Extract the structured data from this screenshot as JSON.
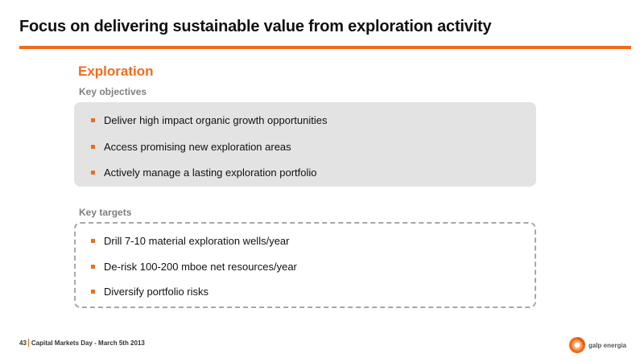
{
  "slide": {
    "title": "Focus on delivering sustainable value from exploration activity",
    "section_heading": "Exploration",
    "key_objectives": {
      "label": "Key objectives",
      "items": [
        "Deliver high impact organic growth opportunities",
        "Access promising new exploration areas",
        "Actively manage a lasting exploration portfolio"
      ]
    },
    "key_targets": {
      "label": "Key targets",
      "items": [
        "Drill 7-10 material exploration wells/year",
        "De-risk 100-200 mboe net resources/year",
        "Diversify portfolio risks"
      ]
    }
  },
  "footer": {
    "page_number": "43",
    "text": "Capital Markets Day - March 5th 2013",
    "logo_text": "galp energia"
  },
  "colors": {
    "accent": "#f26b1d",
    "objectives_box": "#e3e3e3",
    "targets_border": "#a6a6a6",
    "label_grey": "#7f7f7f"
  },
  "icons": {
    "bullet": "orange-square-bullet",
    "logo": "galp-energia-logo-icon"
  }
}
